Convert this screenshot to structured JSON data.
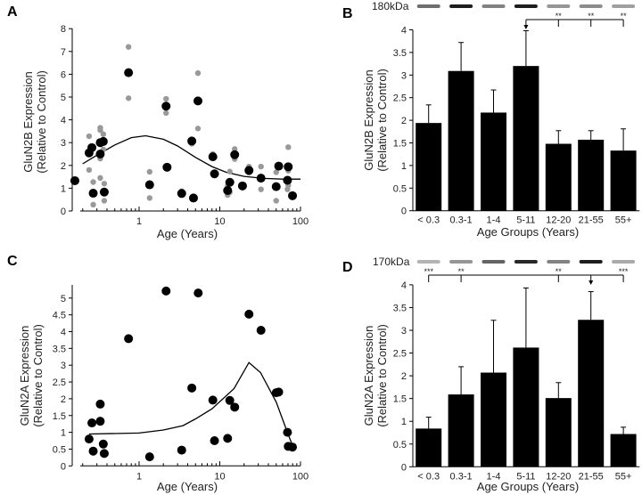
{
  "chart_data": [
    {
      "panel": "A",
      "type": "scatter",
      "xscale": "log",
      "xlabel": "Age (Years)",
      "ylabel": [
        "GluN2B Expression",
        "(Relative to Control)"
      ],
      "xlim": [
        0.15,
        100
      ],
      "ylim": [
        0,
        8
      ],
      "xticks": [
        1,
        10,
        100
      ],
      "xtick_labels": [
        "1",
        "10",
        "100"
      ],
      "yticks": [
        0,
        1,
        2,
        3,
        4,
        5,
        6,
        7,
        8
      ],
      "ytick_labels": [
        "0",
        "1",
        "2",
        "3",
        "4",
        "5",
        "6",
        "7",
        "8"
      ],
      "colors": {
        "mean": "#000000",
        "replicate": "#999999",
        "fit": "#000000"
      },
      "series": [
        {
          "name": "replicate",
          "points": [
            [
              0.24,
              3.28
            ],
            [
              0.24,
              1.8
            ],
            [
              0.27,
              0.28
            ],
            [
              0.27,
              1.27
            ],
            [
              0.33,
              3.65
            ],
            [
              0.33,
              3.55
            ],
            [
              0.33,
              2.3
            ],
            [
              0.33,
              1.45
            ],
            [
              0.36,
              3.37
            ],
            [
              0.36,
              2.7
            ],
            [
              0.37,
              1.2
            ],
            [
              0.37,
              0.45
            ],
            [
              0.74,
              7.2
            ],
            [
              0.74,
              4.95
            ],
            [
              1.35,
              1.72
            ],
            [
              1.35,
              0.57
            ],
            [
              2.16,
              4.92
            ],
            [
              2.16,
              4.3
            ],
            [
              3.37,
              0.87
            ],
            [
              3.37,
              0.7
            ],
            [
              4.5,
              2.95
            ],
            [
              5.36,
              6.05
            ],
            [
              5.36,
              3.62
            ],
            [
              8.2,
              2.5
            ],
            [
              12.5,
              0.7
            ],
            [
              12.5,
              1.1
            ],
            [
              13.3,
              1.73
            ],
            [
              13.3,
              0.82
            ],
            [
              15.3,
              2.72
            ],
            [
              15.3,
              2.28
            ],
            [
              23,
              1.95
            ],
            [
              23,
              1.68
            ],
            [
              32.4,
              1.95
            ],
            [
              32.4,
              0.95
            ],
            [
              50,
              1.7
            ],
            [
              50,
              0.45
            ],
            [
              69,
              0.95
            ],
            [
              70.5,
              2.8
            ],
            [
              70.5,
              1.77
            ],
            [
              70.5,
              1.13
            ]
          ]
        },
        {
          "name": "mean",
          "points": [
            [
              0.16,
              1.33
            ],
            [
              0.24,
              2.55
            ],
            [
              0.26,
              2.78
            ],
            [
              0.27,
              0.78
            ],
            [
              0.33,
              3.0
            ],
            [
              0.33,
              2.5
            ],
            [
              0.36,
              3.05
            ],
            [
              0.37,
              0.83
            ],
            [
              0.74,
              6.07
            ],
            [
              1.35,
              1.15
            ],
            [
              2.16,
              4.6
            ],
            [
              2.22,
              1.92
            ],
            [
              3.37,
              0.77
            ],
            [
              4.5,
              3.07
            ],
            [
              4.72,
              0.57
            ],
            [
              5.36,
              4.83
            ],
            [
              8.2,
              2.38
            ],
            [
              8.6,
              1.63
            ],
            [
              12.5,
              0.9
            ],
            [
              13.3,
              1.26
            ],
            [
              15.3,
              2.47
            ],
            [
              19.1,
              1.1
            ],
            [
              23,
              1.78
            ],
            [
              32.4,
              1.44
            ],
            [
              50,
              1.07
            ],
            [
              53.7,
              1.97
            ],
            [
              69,
              1.35
            ],
            [
              70.5,
              1.94
            ],
            [
              79.6,
              0.67
            ]
          ]
        },
        {
          "name": "fit",
          "curve": [
            [
              0.2,
              2.07
            ],
            [
              0.3,
              2.45
            ],
            [
              0.5,
              2.9
            ],
            [
              0.8,
              3.22
            ],
            [
              1.2,
              3.3
            ],
            [
              2,
              3.15
            ],
            [
              3,
              2.85
            ],
            [
              5,
              2.35
            ],
            [
              8,
              1.95
            ],
            [
              12,
              1.7
            ],
            [
              20,
              1.52
            ],
            [
              35,
              1.43
            ],
            [
              60,
              1.4
            ],
            [
              100,
              1.4
            ]
          ]
        }
      ]
    },
    {
      "panel": "B",
      "type": "bar",
      "xlabel": "Age Groups (Years)",
      "ylabel": [
        "GluN2B Expression",
        "(Relative to Control)"
      ],
      "categories": [
        "< 0.3",
        "0.3-1",
        "1-4",
        "5-11",
        "12-20",
        "21-55",
        "55+"
      ],
      "values": [
        1.94,
        3.09,
        2.17,
        3.2,
        1.48,
        1.57,
        1.33
      ],
      "error_upper": [
        2.34,
        3.72,
        2.67,
        3.98,
        1.77,
        1.77,
        1.81
      ],
      "ylim": [
        0,
        4
      ],
      "yticks": [
        0,
        0.5,
        1,
        1.5,
        2,
        2.5,
        3,
        3.5,
        4
      ],
      "ytick_labels": [
        "0",
        "0.5",
        "1",
        "1.5",
        "2",
        "2.5",
        "3",
        "3.5",
        "4"
      ],
      "blot_label": "180kDa",
      "band_intensity": [
        0.55,
        0.95,
        0.45,
        0.95,
        0.35,
        0.4,
        0.3
      ],
      "significance": {
        "reference": "5-11",
        "comparisons": [
          {
            "group": "12-20",
            "stars": "**"
          },
          {
            "group": "21-55",
            "stars": "**"
          },
          {
            "group": "55+",
            "stars": "**"
          }
        ]
      },
      "colors": {
        "bar": "#000000"
      }
    },
    {
      "panel": "C",
      "type": "scatter",
      "xscale": "log",
      "xlabel": "Age (Years)",
      "ylabel": [
        "GluN2A Expression",
        "(Relative to Control)"
      ],
      "xlim": [
        0.15,
        100
      ],
      "ylim": [
        0,
        5.5
      ],
      "xticks": [
        1,
        10,
        100
      ],
      "xtick_labels": [
        "1",
        "10",
        "100"
      ],
      "yticks": [
        0,
        0.5,
        1,
        1.5,
        2,
        2.5,
        3,
        3.5,
        4,
        4.5,
        5
      ],
      "ytick_labels": [
        "0",
        "0.5",
        "1",
        "1.5",
        "2",
        "2.5",
        "3",
        "3.5",
        "4",
        "4.5",
        "5"
      ],
      "colors": {
        "mean": "#000000",
        "fit": "#000000"
      },
      "series": [
        {
          "name": "mean",
          "points": [
            [
              0.24,
              0.8
            ],
            [
              0.26,
              1.28
            ],
            [
              0.27,
              0.44
            ],
            [
              0.33,
              1.84
            ],
            [
              0.33,
              1.33
            ],
            [
              0.36,
              0.65
            ],
            [
              0.37,
              0.37
            ],
            [
              0.74,
              3.79
            ],
            [
              1.35,
              0.27
            ],
            [
              2.16,
              5.21
            ],
            [
              3.37,
              0.47
            ],
            [
              4.5,
              2.32
            ],
            [
              5.4,
              5.15
            ],
            [
              8.2,
              1.96
            ],
            [
              8.6,
              0.75
            ],
            [
              12.5,
              0.82
            ],
            [
              13.3,
              1.95
            ],
            [
              15.3,
              1.75
            ],
            [
              23,
              4.52
            ],
            [
              32.4,
              4.04
            ],
            [
              50,
              2.18
            ],
            [
              53.7,
              2.2
            ],
            [
              69,
              1.0
            ],
            [
              70.5,
              0.58
            ],
            [
              79.6,
              0.56
            ]
          ]
        },
        {
          "name": "fit",
          "curve": [
            [
              0.24,
              0.95
            ],
            [
              1,
              0.98
            ],
            [
              2,
              1.07
            ],
            [
              3.5,
              1.2
            ],
            [
              5,
              1.4
            ],
            [
              8,
              1.7
            ],
            [
              15,
              2.3
            ],
            [
              23,
              3.08
            ],
            [
              32,
              2.78
            ],
            [
              50,
              1.9
            ],
            [
              70,
              0.95
            ],
            [
              80,
              0.6
            ]
          ]
        }
      ]
    },
    {
      "panel": "D",
      "type": "bar",
      "xlabel": "Age Groups (Years)",
      "ylabel": [
        "GluN2A Expression",
        "(Relative to Control)"
      ],
      "categories": [
        "< 0.3",
        "0.3-1",
        "1-4",
        "5-11",
        "12-20",
        "21-55",
        "55+"
      ],
      "values": [
        0.84,
        1.59,
        2.07,
        2.62,
        1.51,
        3.23,
        0.72
      ],
      "error_upper": [
        1.09,
        2.2,
        3.22,
        3.93,
        1.85,
        3.85,
        0.87
      ],
      "ylim": [
        0,
        4
      ],
      "yticks": [
        0,
        0.5,
        1,
        1.5,
        2,
        2.5,
        3,
        3.5,
        4
      ],
      "ytick_labels": [
        "0",
        "0.5",
        "1",
        "1.5",
        "2",
        "2.5",
        "3",
        "3.5",
        "4"
      ],
      "blot_label": "170kDa",
      "band_intensity": [
        0.2,
        0.35,
        0.6,
        0.9,
        0.45,
        0.95,
        0.25
      ],
      "significance": {
        "reference": "21-55",
        "comparisons": [
          {
            "group": "< 0.3",
            "stars": "***"
          },
          {
            "group": "0.3-1",
            "stars": "**"
          },
          {
            "group": "12-20",
            "stars": "**"
          },
          {
            "group": "55+",
            "stars": "***"
          }
        ]
      },
      "colors": {
        "bar": "#000000"
      }
    }
  ]
}
